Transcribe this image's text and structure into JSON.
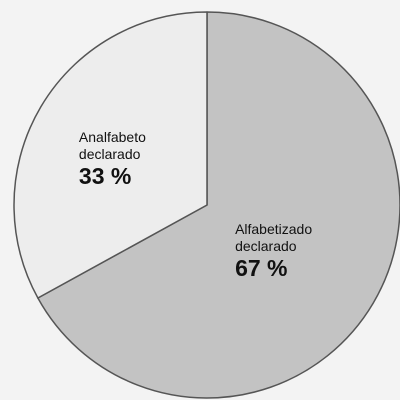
{
  "chart_data": {
    "type": "pie",
    "categories": [
      "Alfabetizado declarado",
      "Analfabeto declarado"
    ],
    "values": [
      67,
      33
    ],
    "value_labels": [
      "67 %",
      "33 %"
    ],
    "colors": [
      "#c3c3c3",
      "#ededed"
    ]
  }
}
